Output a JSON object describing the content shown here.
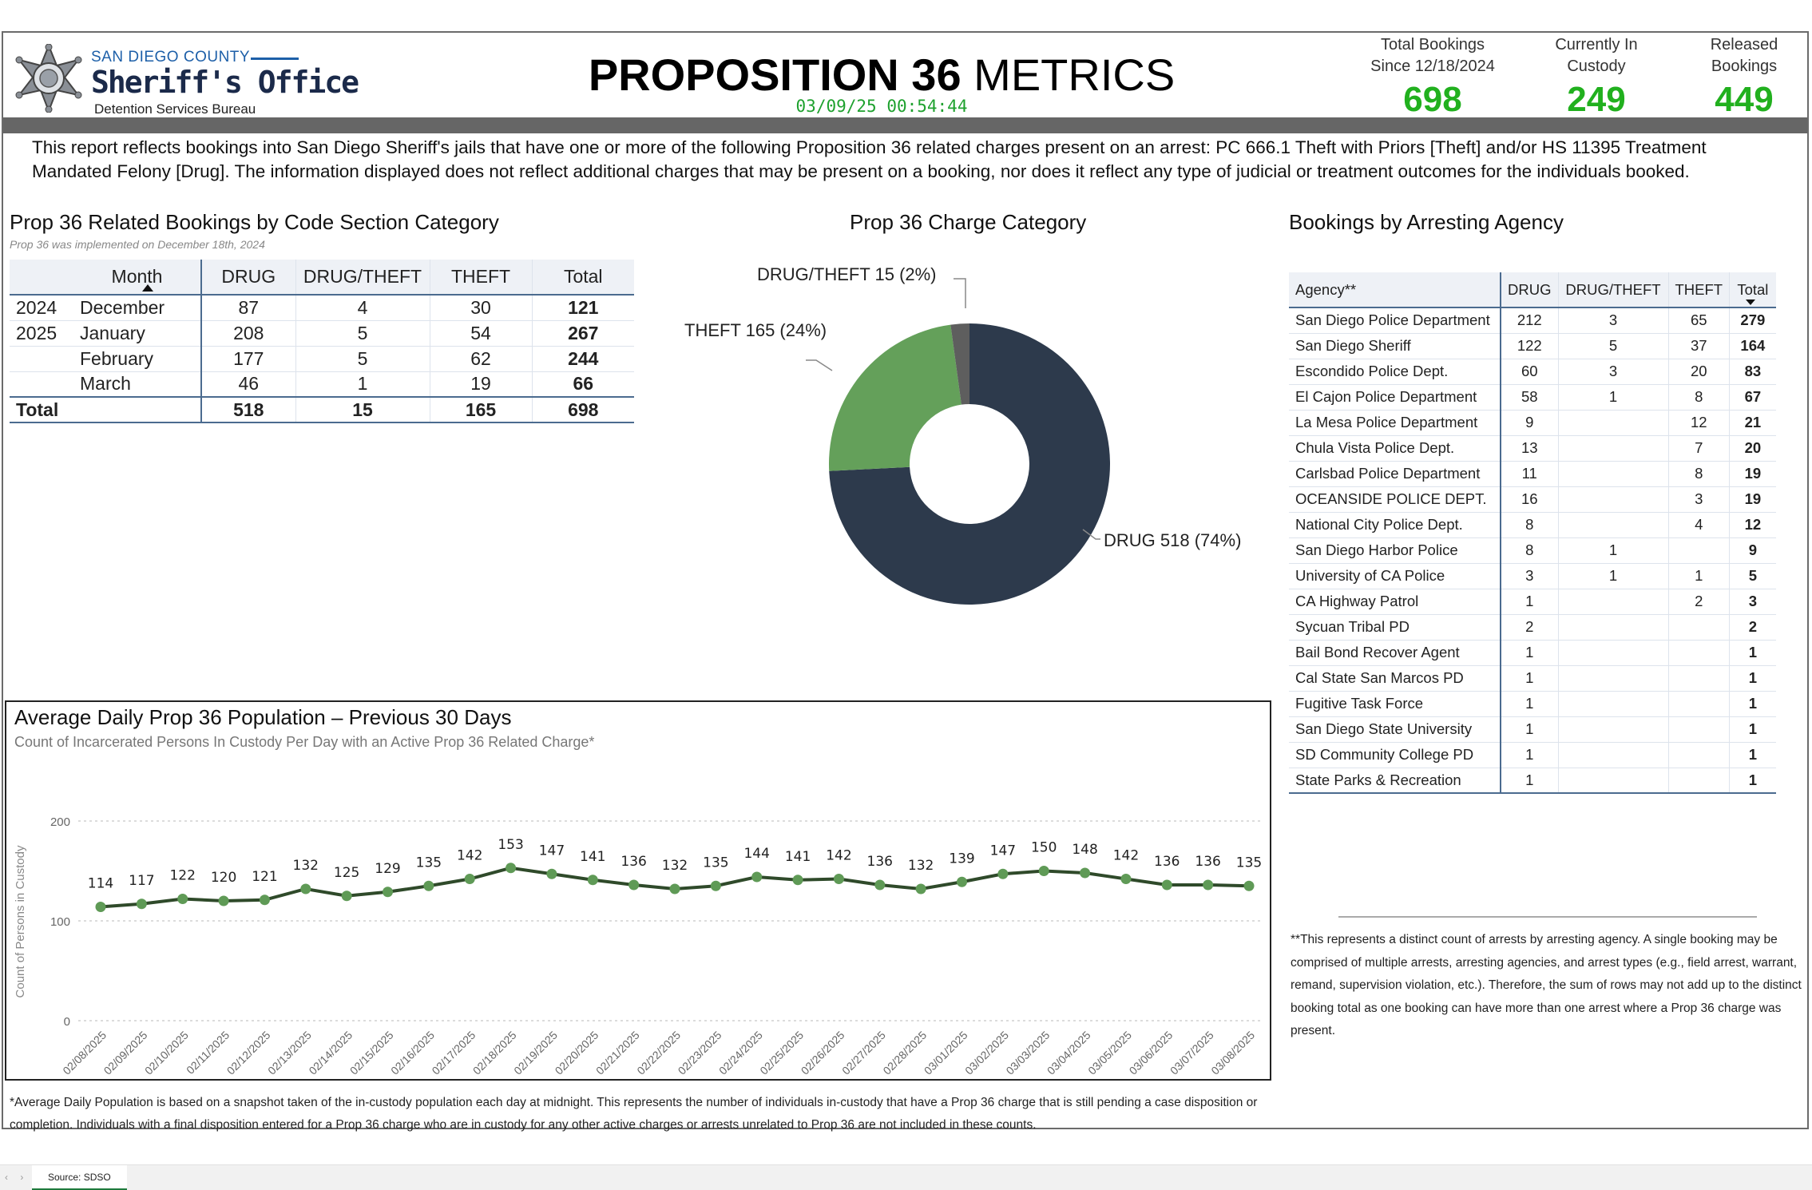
{
  "header": {
    "logo_county": "SAN DIEGO COUNTY",
    "logo_office": "Sheriff's Office",
    "logo_bureau": "Detention Services Bureau",
    "title_bold": "PROPOSITION 36",
    "title_rest": " METRICS",
    "timestamp": "03/09/25 00:54:44"
  },
  "kpis": [
    {
      "label": "Total Bookings\nSince 12/18/2024",
      "value": "698"
    },
    {
      "label": "Currently In\nCustody",
      "value": "249"
    },
    {
      "label": "Released\nBookings",
      "value": "449"
    }
  ],
  "intro": "This report reflects bookings into San Diego Sheriff's jails that have one or more of the following Proposition 36 related charges present on an arrest: PC 666.1 Theft with Priors [Theft] and/or HS 11395 Treatment Mandated Felony [Drug]. The information displayed does not reflect additional charges that may be present on a booking, nor does it reflect any type of judicial or treatment outcomes for the individuals booked.",
  "month_table": {
    "title": "Prop 36 Related Bookings by Code Section Category",
    "note": "Prop 36 was implemented on December 18th, 2024",
    "headers": [
      "Month",
      "DRUG",
      "DRUG/THEFT",
      "THEFT",
      "Total"
    ],
    "rows": [
      {
        "year": "2024",
        "month": "December",
        "drug": "87",
        "drug_theft": "4",
        "theft": "30",
        "total": "121"
      },
      {
        "year": "2025",
        "month": "January",
        "drug": "208",
        "drug_theft": "5",
        "theft": "54",
        "total": "267"
      },
      {
        "year": "",
        "month": "February",
        "drug": "177",
        "drug_theft": "5",
        "theft": "62",
        "total": "244"
      },
      {
        "year": "",
        "month": "March",
        "drug": "46",
        "drug_theft": "1",
        "theft": "19",
        "total": "66"
      }
    ],
    "total_row": {
      "label": "Total",
      "drug": "518",
      "drug_theft": "15",
      "theft": "165",
      "total": "698"
    }
  },
  "donut": {
    "title": "Prop 36 Charge Category",
    "slices": [
      {
        "name": "DRUG",
        "value": 518,
        "label": "DRUG 518 (74%)",
        "color": "#2d3a4c"
      },
      {
        "name": "THEFT",
        "value": 165,
        "label": "THEFT 165 (24%)",
        "color": "#64a05a"
      },
      {
        "name": "DRUG/THEFT",
        "value": 15,
        "label": "DRUG/THEFT 15 (2%)",
        "color": "#5e5e5e"
      }
    ]
  },
  "agency_table": {
    "title": "Bookings by Arresting Agency",
    "headers": [
      "Agency**",
      "DRUG",
      "DRUG/THEFT",
      "THEFT",
      "Total"
    ],
    "rows": [
      {
        "agency": "San Diego Police Department",
        "drug": "212",
        "drug_theft": "3",
        "theft": "65",
        "total": "279"
      },
      {
        "agency": "San Diego Sheriff",
        "drug": "122",
        "drug_theft": "5",
        "theft": "37",
        "total": "164"
      },
      {
        "agency": "Escondido Police Dept.",
        "drug": "60",
        "drug_theft": "3",
        "theft": "20",
        "total": "83"
      },
      {
        "agency": "El Cajon Police Department",
        "drug": "58",
        "drug_theft": "1",
        "theft": "8",
        "total": "67"
      },
      {
        "agency": "La Mesa Police Department",
        "drug": "9",
        "drug_theft": "",
        "theft": "12",
        "total": "21"
      },
      {
        "agency": "Chula Vista Police Dept.",
        "drug": "13",
        "drug_theft": "",
        "theft": "7",
        "total": "20"
      },
      {
        "agency": "Carlsbad Police Department",
        "drug": "11",
        "drug_theft": "",
        "theft": "8",
        "total": "19"
      },
      {
        "agency": "OCEANSIDE POLICE DEPT.",
        "drug": "16",
        "drug_theft": "",
        "theft": "3",
        "total": "19"
      },
      {
        "agency": "National City Police Dept.",
        "drug": "8",
        "drug_theft": "",
        "theft": "4",
        "total": "12"
      },
      {
        "agency": "San Diego Harbor Police",
        "drug": "8",
        "drug_theft": "1",
        "theft": "",
        "total": "9"
      },
      {
        "agency": "University of CA Police",
        "drug": "3",
        "drug_theft": "1",
        "theft": "1",
        "total": "5"
      },
      {
        "agency": "CA Highway Patrol",
        "drug": "1",
        "drug_theft": "",
        "theft": "2",
        "total": "3"
      },
      {
        "agency": "Sycuan Tribal PD",
        "drug": "2",
        "drug_theft": "",
        "theft": "",
        "total": "2"
      },
      {
        "agency": "Bail Bond Recover Agent",
        "drug": "1",
        "drug_theft": "",
        "theft": "",
        "total": "1"
      },
      {
        "agency": "Cal State San Marcos PD",
        "drug": "1",
        "drug_theft": "",
        "theft": "",
        "total": "1"
      },
      {
        "agency": "Fugitive Task Force",
        "drug": "1",
        "drug_theft": "",
        "theft": "",
        "total": "1"
      },
      {
        "agency": "San Diego State University",
        "drug": "1",
        "drug_theft": "",
        "theft": "",
        "total": "1"
      },
      {
        "agency": "SD Community College PD",
        "drug": "1",
        "drug_theft": "",
        "theft": "",
        "total": "1"
      },
      {
        "agency": "State Parks & Recreation",
        "drug": "1",
        "drug_theft": "",
        "theft": "",
        "total": "1"
      }
    ],
    "note": "**This represents a distinct count of arrests by arresting agency. A single booking may be comprised of multiple arrests, arresting agencies, and arrest types (e.g., field arrest, warrant, remand, supervision violation, etc.). Therefore, the sum of rows may not add up to the distinct booking total as one booking can have more than one arrest where a Prop 36 charge was present."
  },
  "line_chart": {
    "title": "Average Daily Prop 36 Population – Previous 30 Days",
    "subtitle": "Count of Incarcerated Persons In Custody Per Day with an Active Prop 36 Related Charge*",
    "footnote": "*Average Daily Population is based on a snapshot taken of the in-custody population each day at midnight. This represents the number of individuals in-custody that have a Prop 36 charge that is still pending a case disposition or completion. Individuals with a final disposition entered for a Prop 36 charge who are in custody for any other active charges or arrests unrelated to Prop 36 are not included in these counts."
  },
  "chart_data": {
    "type": "line",
    "title": "Average Daily Prop 36 Population – Previous 30 Days",
    "subtitle": "Count of Incarcerated Persons In Custody Per Day with an Active Prop 36 Related Charge*",
    "xlabel": "",
    "ylabel": "Count of Persons in Custody",
    "ylim": [
      0,
      200
    ],
    "yticks": [
      0,
      100,
      200
    ],
    "grid": "horizontal dotted",
    "color": "#2f4a2a",
    "marker_color": "#5f9a56",
    "x": [
      "02/08/2025",
      "02/09/2025",
      "02/10/2025",
      "02/11/2025",
      "02/12/2025",
      "02/13/2025",
      "02/14/2025",
      "02/15/2025",
      "02/16/2025",
      "02/17/2025",
      "02/18/2025",
      "02/19/2025",
      "02/20/2025",
      "02/21/2025",
      "02/22/2025",
      "02/23/2025",
      "02/24/2025",
      "02/25/2025",
      "02/26/2025",
      "02/27/2025",
      "02/28/2025",
      "03/01/2025",
      "03/02/2025",
      "03/03/2025",
      "03/04/2025",
      "03/05/2025",
      "03/06/2025",
      "03/07/2025",
      "03/08/2025"
    ],
    "values": [
      114,
      117,
      122,
      120,
      121,
      132,
      125,
      129,
      135,
      142,
      153,
      147,
      141,
      136,
      132,
      135,
      144,
      141,
      142,
      136,
      132,
      139,
      147,
      150,
      148,
      142,
      136,
      136,
      135
    ]
  },
  "tabs": {
    "source": "Source: SDSO"
  }
}
